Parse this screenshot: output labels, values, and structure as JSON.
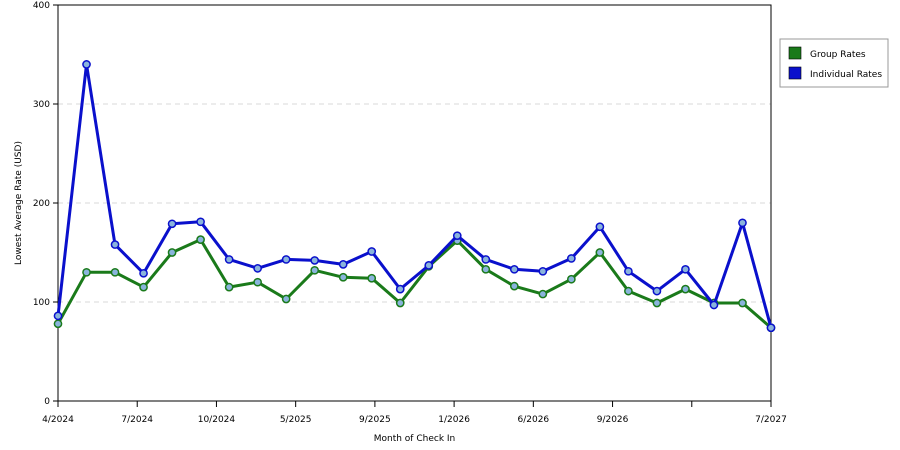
{
  "chart_data": {
    "type": "line",
    "xlabel": "Month of Check In",
    "ylabel": "Lowest Average Rate (USD)",
    "ylim": [
      0,
      400
    ],
    "yticks": [
      0,
      100,
      200,
      300,
      400
    ],
    "x_tick_labels": [
      "4/2024",
      "7/2024",
      "10/2024",
      "5/2025",
      "9/2025",
      "1/2026",
      "6/2026",
      "9/2026",
      "",
      "7/2027"
    ],
    "grid": "horizontal dashed",
    "legend_position": "top-right",
    "series": [
      {
        "name": "Group Rates",
        "color": "#1a7a1a",
        "values": [
          78,
          130,
          130,
          115,
          150,
          163,
          115,
          120,
          103,
          132,
          125,
          124,
          99,
          136,
          162,
          133,
          116,
          108,
          123,
          150,
          111,
          99,
          113,
          99,
          99,
          74
        ]
      },
      {
        "name": "Individual Rates",
        "color": "#0a10cc",
        "values": [
          86,
          340,
          158,
          129,
          179,
          181,
          143,
          134,
          143,
          142,
          138,
          151,
          113,
          137,
          167,
          143,
          133,
          131,
          144,
          176,
          131,
          111,
          133,
          97,
          180,
          74
        ]
      }
    ]
  }
}
